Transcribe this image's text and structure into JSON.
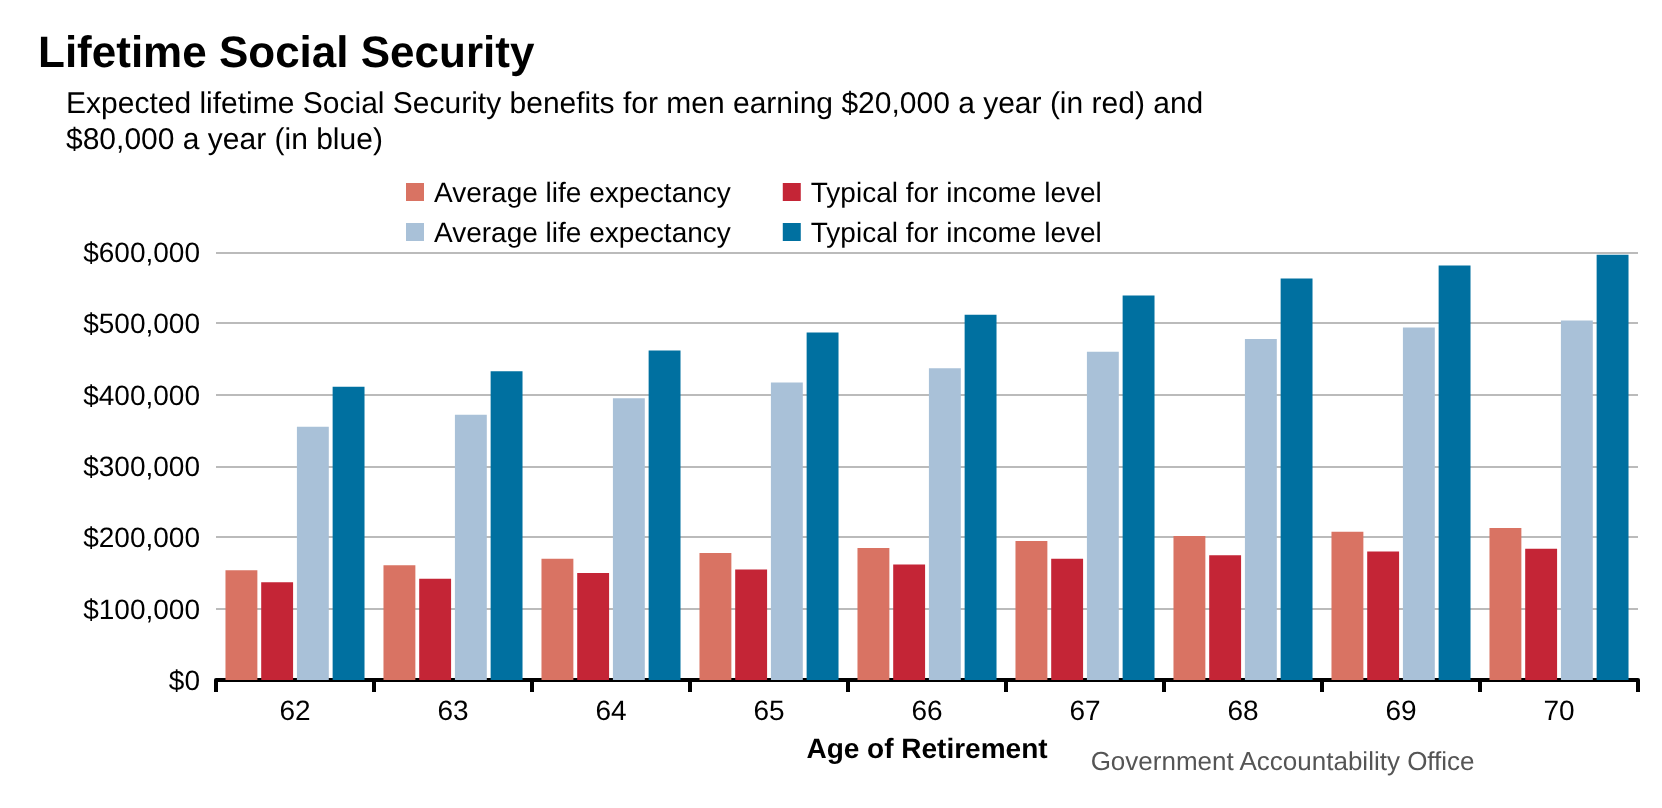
{
  "chart_data": {
    "type": "bar",
    "title": "Lifetime Social Security",
    "subtitle": "Expected lifetime Social Security benefits for men earning $20,000 a year (in red) and\n$80,000 a year (in blue)",
    "xlabel": "Age of Retirement",
    "annotations": [
      "Government Accountability Office"
    ],
    "categories": [
      "62",
      "63",
      "64",
      "65",
      "66",
      "67",
      "68",
      "69",
      "70"
    ],
    "series": [
      {
        "name": "Average life expectancy",
        "color": "#d97363",
        "values": [
          154000,
          161000,
          170000,
          178000,
          185000,
          195000,
          202000,
          208000,
          213000
        ]
      },
      {
        "name": "Typical for income level",
        "color": "#c42536",
        "values": [
          137000,
          142000,
          150000,
          155000,
          162000,
          170000,
          175000,
          180000,
          184000
        ]
      },
      {
        "name": "Average life expectancy",
        "color": "#a9c1d8",
        "values": [
          355000,
          372000,
          395000,
          417000,
          437000,
          460000,
          478000,
          494000,
          504000
        ]
      },
      {
        "name": "Typical for income level",
        "color": "#0070a0",
        "values": [
          411000,
          433000,
          462000,
          487000,
          512000,
          539000,
          563000,
          581000,
          596000
        ]
      }
    ],
    "ylim": [
      0,
      600000
    ],
    "yticks": [
      {
        "value": 0,
        "label": "$0"
      },
      {
        "value": 100000,
        "label": "$100,000"
      },
      {
        "value": 200000,
        "label": "$200,000"
      },
      {
        "value": 300000,
        "label": "$300,000"
      },
      {
        "value": 400000,
        "label": "$400,000"
      },
      {
        "value": 500000,
        "label": "$500,000"
      },
      {
        "value": 600000,
        "label": "$600,000"
      }
    ],
    "grid": "y",
    "legend": "top"
  }
}
